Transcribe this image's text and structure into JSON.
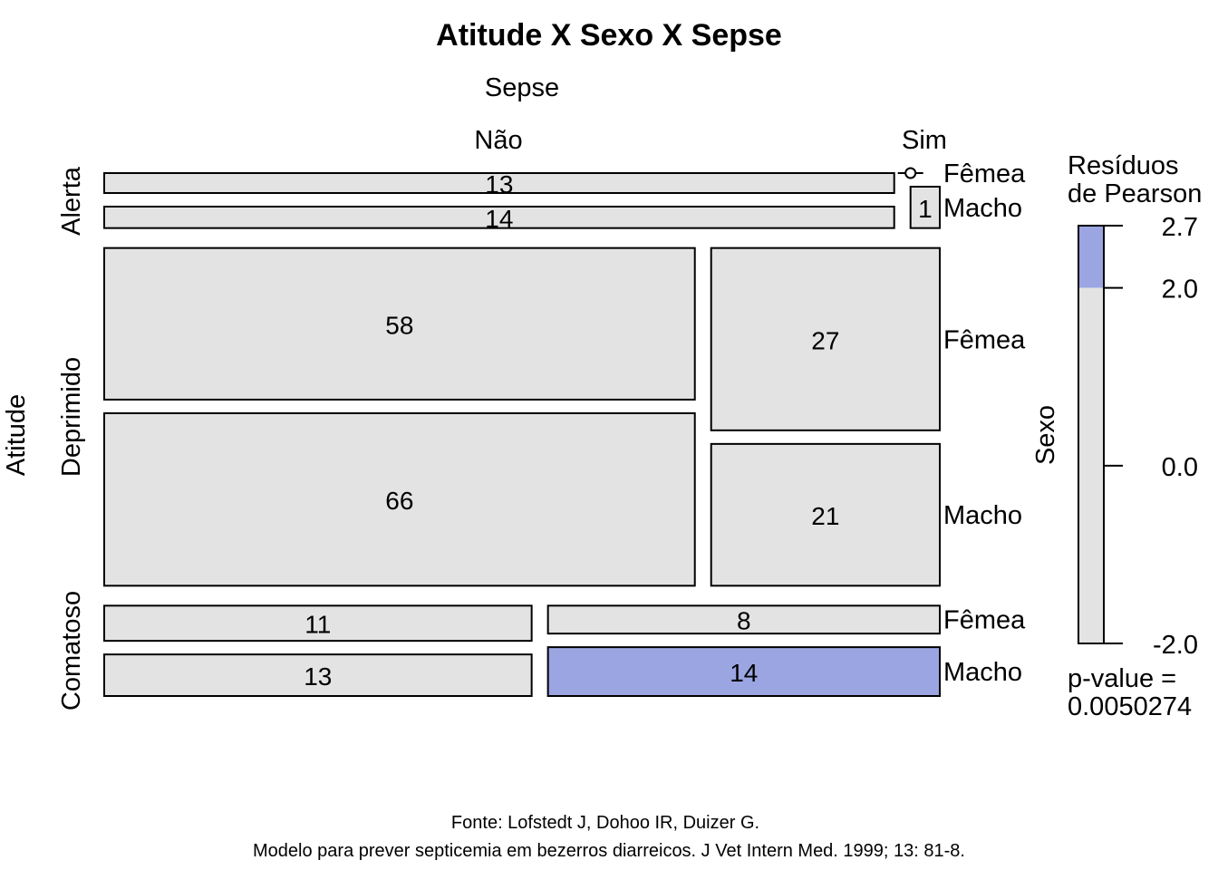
{
  "chart_data": {
    "type": "mosaic",
    "title": "Atitude X Sexo X Sepse",
    "column_variable": "Sepse",
    "column_levels": [
      "Não",
      "Sim"
    ],
    "row_variable": "Atitude",
    "row_levels": [
      "Alerta",
      "Deprimido",
      "Comatoso"
    ],
    "inner_variable": "Sexo",
    "inner_levels": [
      "Fêmea",
      "Macho"
    ],
    "cells": [
      {
        "atitude": "Alerta",
        "sepse": "Não",
        "sexo": "Fêmea",
        "count": 13,
        "shaded": false
      },
      {
        "atitude": "Alerta",
        "sepse": "Não",
        "sexo": "Macho",
        "count": 14,
        "shaded": false
      },
      {
        "atitude": "Alerta",
        "sepse": "Sim",
        "sexo": "Fêmea",
        "count": 0,
        "shaded": false
      },
      {
        "atitude": "Alerta",
        "sepse": "Sim",
        "sexo": "Macho",
        "count": 1,
        "shaded": false
      },
      {
        "atitude": "Deprimido",
        "sepse": "Não",
        "sexo": "Fêmea",
        "count": 58,
        "shaded": false
      },
      {
        "atitude": "Deprimido",
        "sepse": "Não",
        "sexo": "Macho",
        "count": 66,
        "shaded": false
      },
      {
        "atitude": "Deprimido",
        "sepse": "Sim",
        "sexo": "Fêmea",
        "count": 27,
        "shaded": false
      },
      {
        "atitude": "Deprimido",
        "sepse": "Sim",
        "sexo": "Macho",
        "count": 21,
        "shaded": false
      },
      {
        "atitude": "Comatoso",
        "sepse": "Não",
        "sexo": "Fêmea",
        "count": 11,
        "shaded": false
      },
      {
        "atitude": "Comatoso",
        "sepse": "Não",
        "sexo": "Macho",
        "count": 13,
        "shaded": false
      },
      {
        "atitude": "Comatoso",
        "sepse": "Sim",
        "sexo": "Fêmea",
        "count": 8,
        "shaded": false
      },
      {
        "atitude": "Comatoso",
        "sepse": "Sim",
        "sexo": "Macho",
        "count": 14,
        "shaded": true
      }
    ],
    "legend": {
      "title_lines": [
        "Resíduos",
        "de Pearson"
      ],
      "min": -2.0,
      "max": 2.7,
      "shade_from": 2.0,
      "ticks": [
        2.7,
        2.0,
        0.0,
        -2.0
      ],
      "tick_labels": [
        "2.7",
        "2.0",
        "0.0",
        "-2.0"
      ],
      "pvalue_lines": [
        "p-value =",
        "0.0050274"
      ]
    },
    "colors": {
      "neutral": "#e3e3e3",
      "positive": "#9ba5e2"
    },
    "caption_lines": [
      "Fonte: Lofstedt J, Dohoo IR, Duizer G.",
      "Modelo para prever septicemia em bezerros diarreicos. J Vet Intern Med. 1999; 13: 81-8."
    ]
  }
}
